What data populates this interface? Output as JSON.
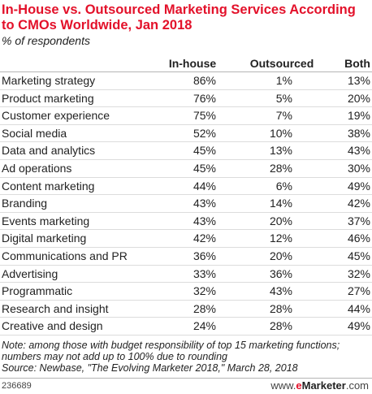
{
  "header": {
    "title": "In-House vs. Outsourced Marketing Services According to CMOs Worldwide, Jan 2018",
    "subtitle": "% of respondents"
  },
  "columns": [
    "In-house",
    "Outsourced",
    "Both"
  ],
  "chart_data": {
    "type": "table",
    "title": "In-House vs. Outsourced Marketing Services According to CMOs Worldwide, Jan 2018",
    "subtitle": "% of respondents",
    "columns": [
      "In-house",
      "Outsourced",
      "Both"
    ],
    "rows": [
      {
        "label": "Marketing strategy",
        "values": [
          "86%",
          "1%",
          "13%"
        ]
      },
      {
        "label": "Product marketing",
        "values": [
          "76%",
          "5%",
          "20%"
        ]
      },
      {
        "label": "Customer experience",
        "values": [
          "75%",
          "7%",
          "19%"
        ]
      },
      {
        "label": "Social media",
        "values": [
          "52%",
          "10%",
          "38%"
        ]
      },
      {
        "label": "Data and analytics",
        "values": [
          "45%",
          "13%",
          "43%"
        ]
      },
      {
        "label": "Ad operations",
        "values": [
          "45%",
          "28%",
          "30%"
        ]
      },
      {
        "label": "Content marketing",
        "values": [
          "44%",
          "6%",
          "49%"
        ]
      },
      {
        "label": "Branding",
        "values": [
          "43%",
          "14%",
          "42%"
        ]
      },
      {
        "label": "Events marketing",
        "values": [
          "43%",
          "20%",
          "37%"
        ]
      },
      {
        "label": "Digital marketing",
        "values": [
          "42%",
          "12%",
          "46%"
        ]
      },
      {
        "label": "Communications and PR",
        "values": [
          "36%",
          "20%",
          "45%"
        ]
      },
      {
        "label": "Advertising",
        "values": [
          "33%",
          "36%",
          "32%"
        ]
      },
      {
        "label": "Programmatic",
        "values": [
          "32%",
          "43%",
          "27%"
        ]
      },
      {
        "label": "Research and insight",
        "values": [
          "28%",
          "28%",
          "44%"
        ]
      },
      {
        "label": "Creative and design",
        "values": [
          "24%",
          "28%",
          "49%"
        ]
      }
    ]
  },
  "footer": {
    "note": "Note: among those with budget responsibility of top 15 marketing functions; numbers may not add up to 100% due to rounding",
    "source": "Source: Newbase, \"The Evolving Marketer 2018,\" March 28, 2018",
    "code": "236689",
    "brand_e": "e",
    "brand_rest": "Marketer",
    "brand_domain": ".com",
    "brand_prefix": "www."
  }
}
